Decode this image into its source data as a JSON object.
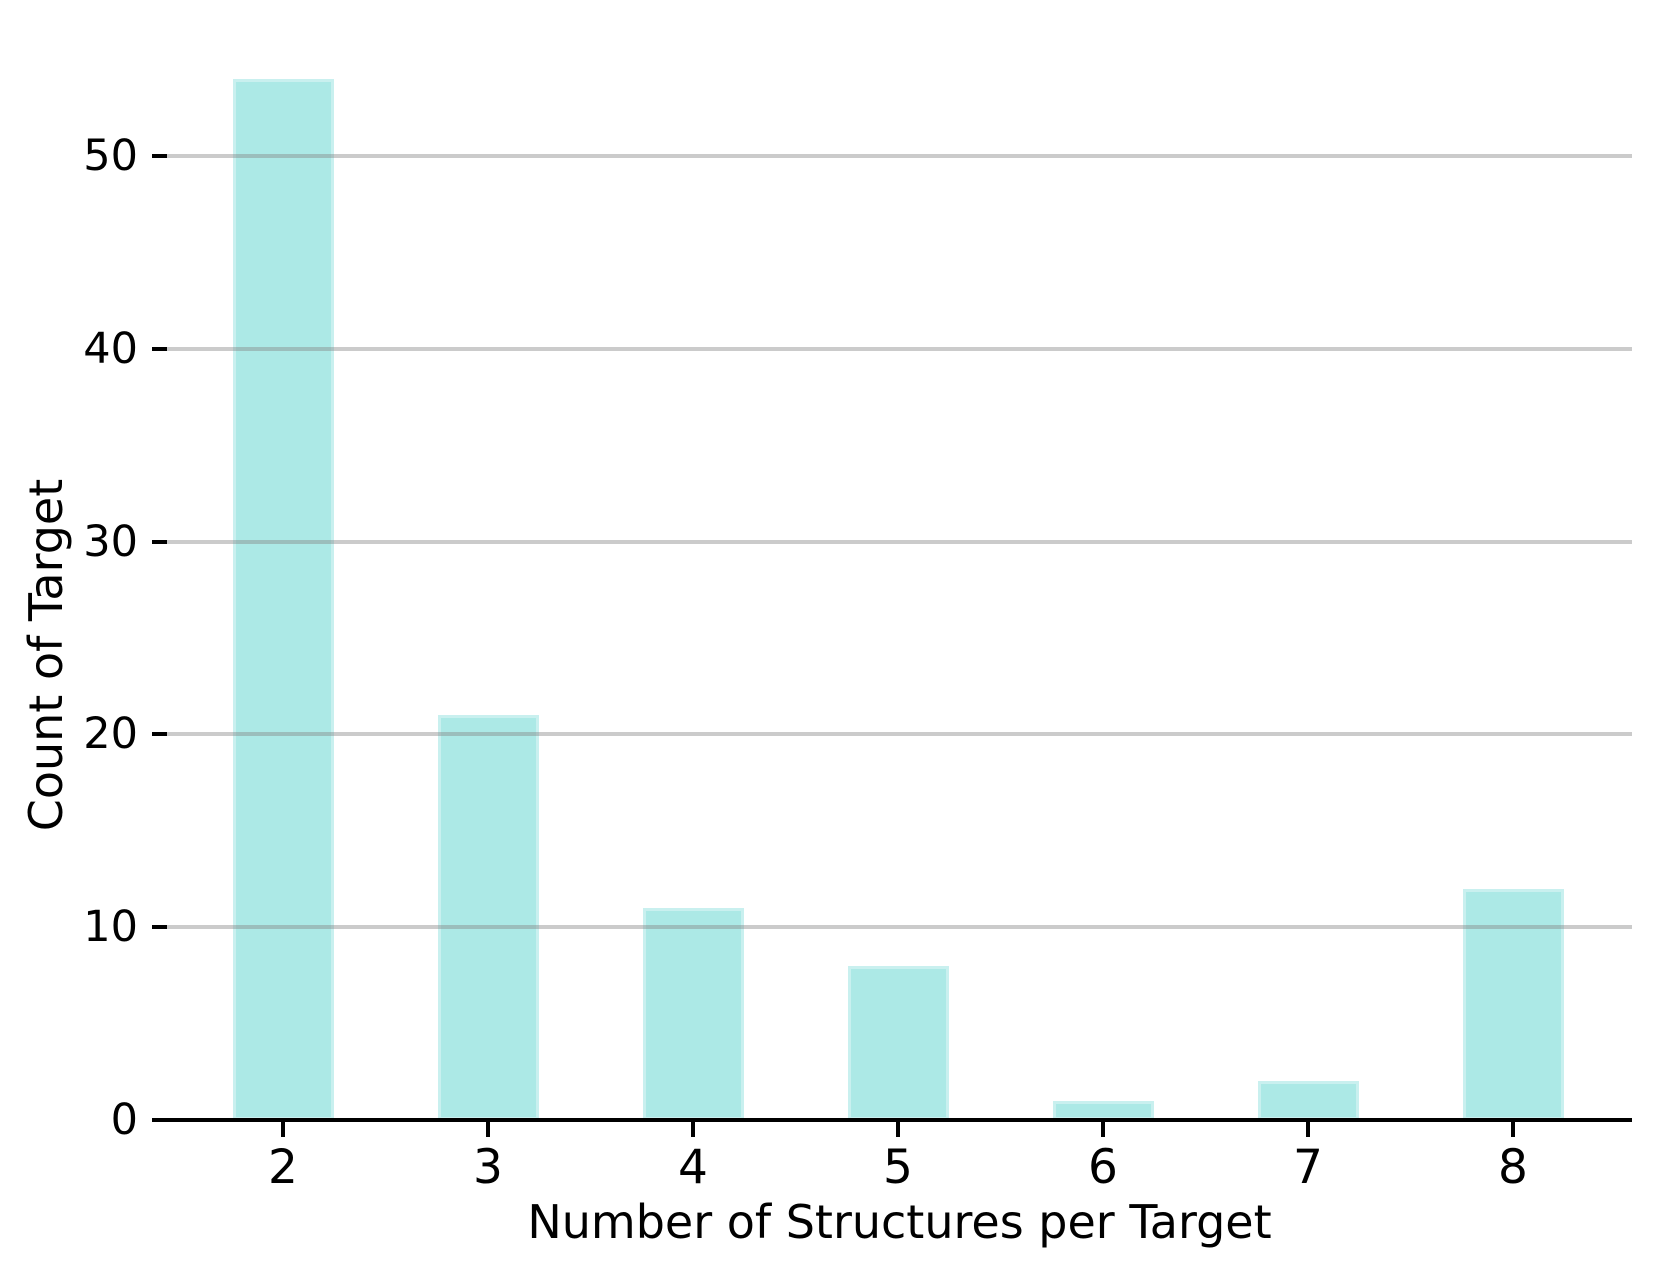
{
  "figure": {
    "background": "#ffffff"
  },
  "chart_data": {
    "type": "bar",
    "title": "",
    "categories": [
      "2",
      "3",
      "4",
      "5",
      "6",
      "7",
      "8"
    ],
    "values": [
      54,
      21,
      11,
      8,
      1,
      2,
      12
    ],
    "xlabel": "Number of Structures per Target",
    "ylabel": "Count of Target",
    "yticks": [
      0,
      10,
      20,
      30,
      40,
      50
    ],
    "ylim": [
      0,
      56
    ],
    "grid": "horizontal",
    "legend": "none",
    "bar_color": "#ACE9E6",
    "grid_color": "rgba(130,130,130,0.42)",
    "axis_color": "#000000",
    "text_color": "#000000"
  }
}
